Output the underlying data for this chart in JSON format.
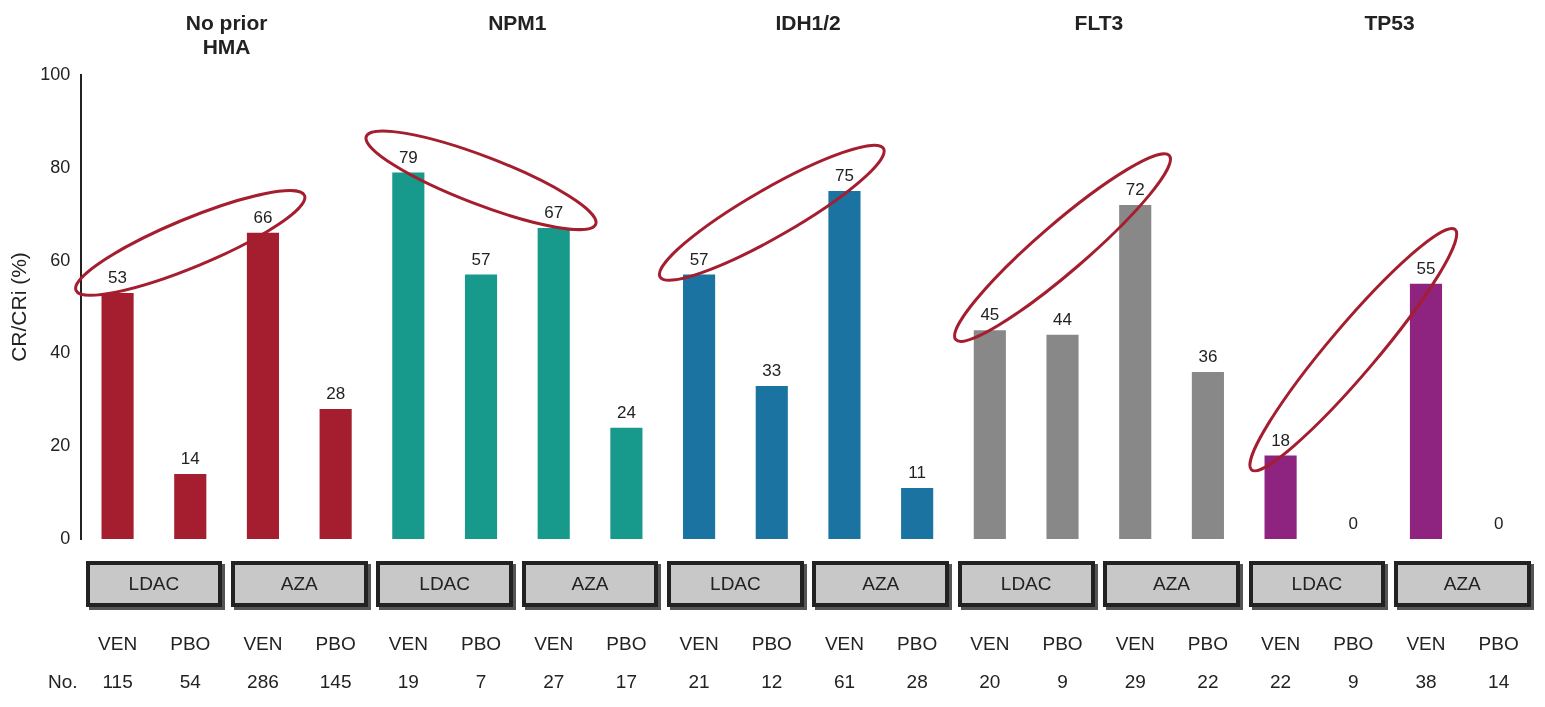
{
  "chart_data": {
    "type": "bar",
    "ylabel": "CR/CRi (%)",
    "ylim": [
      0,
      100
    ],
    "yticks": [
      0,
      20,
      40,
      60,
      80,
      100
    ],
    "grid": false,
    "legend": false,
    "data_labels": true,
    "categories": [
      "VEN\n115",
      "PBO\n54",
      "VEN\n286",
      "PBO\n145",
      "VEN\n19",
      "PBO\n7",
      "VEN\n27",
      "PBO\n17",
      "VEN\n21",
      "PBO\n12",
      "VEN\n61",
      "PBO\n28",
      "VEN\n20",
      "PBO\n9",
      "VEN\n29",
      "PBO\n22",
      "VEN\n22",
      "PBO\n9",
      "VEN\n38",
      "PBO\n14"
    ],
    "values": [
      53,
      14,
      66,
      28,
      79,
      57,
      67,
      24,
      57,
      33,
      75,
      11,
      45,
      44,
      72,
      36,
      18,
      0,
      55,
      0
    ],
    "colors": [
      "#a41e2f",
      "#a41e2f",
      "#a41e2f",
      "#a41e2f",
      "#17998b",
      "#17998b",
      "#17998b",
      "#17998b",
      "#1a73a0",
      "#1a73a0",
      "#1a73a0",
      "#1a73a0",
      "#888888",
      "#888888",
      "#888888",
      "#888888",
      "#8e2480",
      "#8e2480",
      "#8e2480",
      "#8e2480"
    ],
    "annotations": [
      "No prior\nHMA",
      "NPM1",
      "IDH1/2",
      "FLT3",
      "TP53",
      "LDAC",
      "AZA",
      "LDAC",
      "AZA",
      "LDAC",
      "AZA",
      "LDAC",
      "AZA",
      "LDAC",
      "AZA",
      "No."
    ]
  }
}
